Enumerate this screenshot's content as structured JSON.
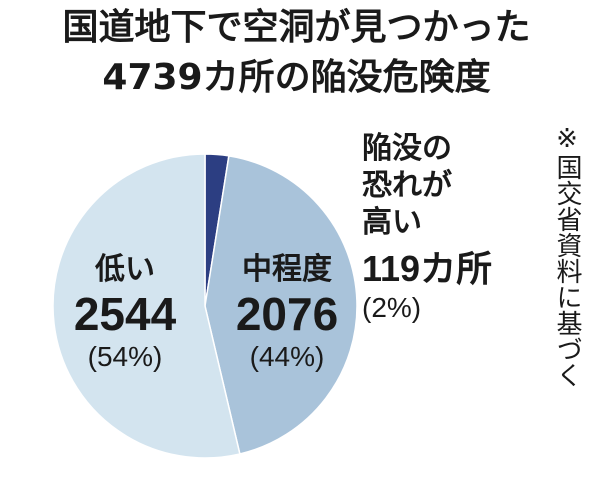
{
  "chart_data": {
    "type": "pie",
    "title": "国道地下で空洞が見つかった",
    "subtitle": "4739カ所の陥没危険度",
    "total": 4739,
    "slices": [
      {
        "label": "陥没の恐れが高い",
        "label_lines": [
          "陥没の",
          "恐れが",
          "高い"
        ],
        "value": 119,
        "value_text": "119カ所",
        "percent_text": "(2%)",
        "color": "#2c3e82"
      },
      {
        "label": "中程度",
        "value": 2076,
        "value_text": "2076",
        "percent_text": "(44%)",
        "color": "#a9c3da"
      },
      {
        "label": "低い",
        "value": 2544,
        "value_text": "2544",
        "percent_text": "(54%)",
        "color": "#d3e4ef"
      }
    ],
    "source_note": "※国交省資料に基づく"
  },
  "colors": {
    "outline": "#ffffff",
    "text": "#1a1a1a"
  }
}
